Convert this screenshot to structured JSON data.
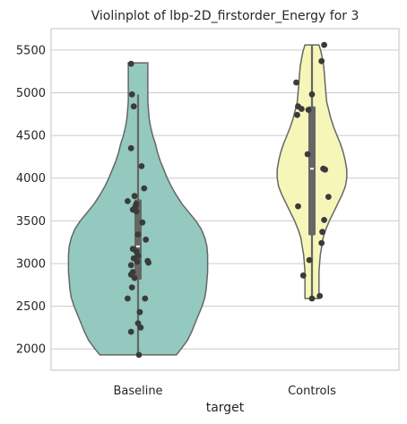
{
  "chart_data": {
    "type": "violin",
    "title": "Violinplot of lbp-2D_firstorder_Energy for 3",
    "xlabel": "target",
    "ylabel": "",
    "categories": [
      "Baseline",
      "Controls"
    ],
    "ylim": [
      1750,
      5750
    ],
    "yticks": [
      2000,
      2500,
      3000,
      3500,
      4000,
      4500,
      5000,
      5500
    ],
    "grid": true,
    "colors": [
      "#93c9bf",
      "#f6f6b8"
    ],
    "series": [
      {
        "category": "Baseline",
        "range": [
          1930,
          5350
        ],
        "whisker": [
          1930,
          4980
        ],
        "iqr": [
          2810,
          3750
        ],
        "median": 3200,
        "profile": [
          [
            1930,
            0.45
          ],
          [
            2000,
            0.38
          ],
          [
            2100,
            0.29
          ],
          [
            2200,
            0.23
          ],
          [
            2300,
            0.18
          ],
          [
            2400,
            0.13
          ],
          [
            2500,
            0.08
          ],
          [
            2600,
            0.04
          ],
          [
            2700,
            0.02
          ],
          [
            2800,
            0.01
          ],
          [
            2900,
            0.0
          ],
          [
            3000,
            0.0
          ],
          [
            3100,
            0.0
          ],
          [
            3200,
            0.01
          ],
          [
            3300,
            0.04
          ],
          [
            3400,
            0.09
          ],
          [
            3500,
            0.17
          ],
          [
            3600,
            0.27
          ],
          [
            3700,
            0.37
          ],
          [
            3800,
            0.45
          ],
          [
            3900,
            0.52
          ],
          [
            4000,
            0.58
          ],
          [
            4100,
            0.63
          ],
          [
            4200,
            0.68
          ],
          [
            4300,
            0.72
          ],
          [
            4400,
            0.75
          ],
          [
            4500,
            0.79
          ],
          [
            4600,
            0.82
          ],
          [
            4700,
            0.84
          ],
          [
            4800,
            0.85
          ],
          [
            4900,
            0.86
          ],
          [
            5000,
            0.86
          ],
          [
            5100,
            0.86
          ],
          [
            5200,
            0.86
          ],
          [
            5350,
            0.86
          ]
        ],
        "points": [
          [
            -0.08,
            5340
          ],
          [
            -0.07,
            4980
          ],
          [
            -0.05,
            4840
          ],
          [
            -0.08,
            4350
          ],
          [
            0.04,
            4140
          ],
          [
            0.07,
            3880
          ],
          [
            -0.04,
            3790
          ],
          [
            -0.12,
            3730
          ],
          [
            -0.02,
            3700
          ],
          [
            -0.03,
            3670
          ],
          [
            -0.02,
            3610
          ],
          [
            -0.06,
            3630
          ],
          [
            0.05,
            3480
          ],
          [
            0.0,
            3340
          ],
          [
            0.09,
            3280
          ],
          [
            -0.06,
            3170
          ],
          [
            -0.02,
            3140
          ],
          [
            0.0,
            3090
          ],
          [
            -0.05,
            3060
          ],
          [
            -0.01,
            3020
          ],
          [
            0.12,
            3010
          ],
          [
            0.11,
            3030
          ],
          [
            -0.08,
            2980
          ],
          [
            -0.06,
            2900
          ],
          [
            -0.08,
            2870
          ],
          [
            -0.04,
            2830
          ],
          [
            -0.07,
            2720
          ],
          [
            -0.12,
            2590
          ],
          [
            0.08,
            2590
          ],
          [
            0.02,
            2430
          ],
          [
            0.0,
            2300
          ],
          [
            0.03,
            2250
          ],
          [
            -0.08,
            2200
          ],
          [
            0.01,
            1930
          ]
        ]
      },
      {
        "category": "Controls",
        "range": [
          2590,
          5560
        ],
        "whisker": [
          2590,
          5560
        ],
        "iqr": [
          3330,
          4840
        ],
        "median": 4110,
        "profile": [
          [
            2590,
            0.9
          ],
          [
            2700,
            0.9
          ],
          [
            2800,
            0.9
          ],
          [
            2900,
            0.9
          ],
          [
            3000,
            0.89
          ],
          [
            3100,
            0.88
          ],
          [
            3200,
            0.86
          ],
          [
            3300,
            0.84
          ],
          [
            3400,
            0.8
          ],
          [
            3500,
            0.75
          ],
          [
            3600,
            0.69
          ],
          [
            3700,
            0.63
          ],
          [
            3800,
            0.57
          ],
          [
            3900,
            0.52
          ],
          [
            4000,
            0.5
          ],
          [
            4100,
            0.5
          ],
          [
            4200,
            0.52
          ],
          [
            4300,
            0.55
          ],
          [
            4400,
            0.59
          ],
          [
            4500,
            0.64
          ],
          [
            4600,
            0.69
          ],
          [
            4700,
            0.73
          ],
          [
            4800,
            0.76
          ],
          [
            4900,
            0.79
          ],
          [
            5000,
            0.8
          ],
          [
            5100,
            0.81
          ],
          [
            5200,
            0.82
          ],
          [
            5300,
            0.83
          ],
          [
            5400,
            0.85
          ],
          [
            5480,
            0.87
          ],
          [
            5560,
            0.9
          ]
        ],
        "points": [
          [
            0.14,
            5560
          ],
          [
            0.11,
            5370
          ],
          [
            -0.18,
            5120
          ],
          [
            0.0,
            4980
          ],
          [
            -0.16,
            4840
          ],
          [
            -0.12,
            4810
          ],
          [
            -0.04,
            4800
          ],
          [
            -0.17,
            4740
          ],
          [
            -0.05,
            4280
          ],
          [
            0.13,
            4110
          ],
          [
            0.15,
            4100
          ],
          [
            0.19,
            3780
          ],
          [
            0.14,
            3510
          ],
          [
            -0.16,
            3670
          ],
          [
            0.12,
            3370
          ],
          [
            0.11,
            3240
          ],
          [
            -0.03,
            3040
          ],
          [
            -0.1,
            2860
          ],
          [
            0.09,
            2620
          ],
          [
            0.0,
            2590
          ]
        ]
      }
    ]
  }
}
